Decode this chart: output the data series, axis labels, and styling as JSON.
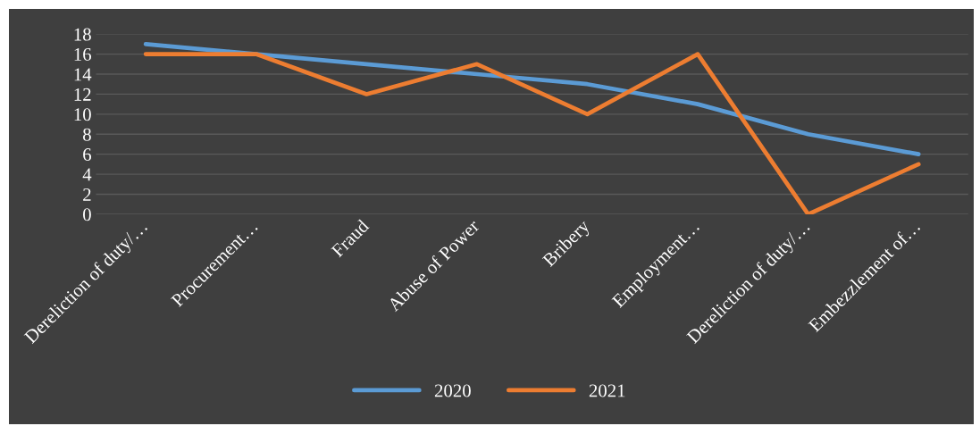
{
  "chart_data": {
    "type": "line",
    "categories": [
      "Dereliction of duty/…",
      "Procurement…",
      "Fraud",
      "Abuse of Power",
      "Bribery",
      "Employment…",
      "Dereliction of duty/…",
      "Embezzlement of…"
    ],
    "series": [
      {
        "name": "2020",
        "color": "#5b9bd5",
        "values": [
          17,
          16,
          15,
          14,
          13,
          11,
          8,
          6
        ]
      },
      {
        "name": "2021",
        "color": "#ed7d31",
        "values": [
          16,
          16,
          12,
          15,
          10,
          16,
          0,
          5
        ]
      }
    ],
    "ylim": [
      0,
      18
    ],
    "yticks": [
      0,
      2,
      4,
      6,
      8,
      10,
      12,
      14,
      16,
      18
    ],
    "grid": "y",
    "legend": "bottom",
    "marker": "none",
    "line_style": "solid"
  }
}
